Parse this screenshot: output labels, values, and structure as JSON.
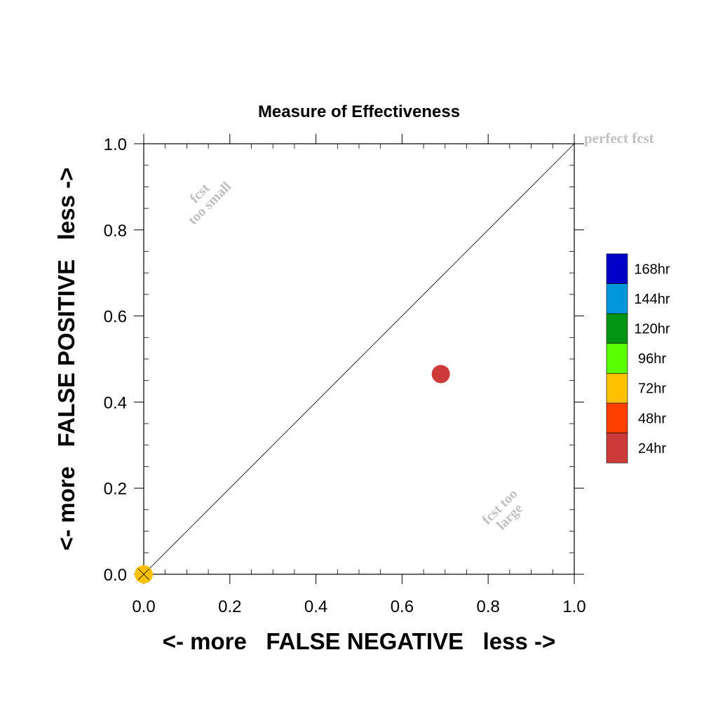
{
  "chart_data": {
    "type": "scatter",
    "title": "Measure of Effectiveness",
    "xlabel": "<- more   FALSE NEGATIVE   less ->",
    "ylabel": "<- more   FALSE POSITIVE   less ->",
    "xlim": [
      0.0,
      1.0
    ],
    "ylim": [
      0.0,
      1.0
    ],
    "xticks": [
      "0.0",
      "0.2",
      "0.4",
      "0.6",
      "0.8",
      "1.0"
    ],
    "yticks": [
      "0.0",
      "0.2",
      "0.4",
      "0.6",
      "0.8",
      "1.0"
    ],
    "tick_values": [
      0.0,
      0.2,
      0.4,
      0.6,
      0.8,
      1.0
    ],
    "grid": false,
    "reference_line": {
      "from": [
        0,
        0
      ],
      "to": [
        1,
        1
      ]
    },
    "annotations": [
      {
        "text": "perfect fcst"
      },
      {
        "text": "fcst\ntoo small"
      },
      {
        "text": "fcst too\nlarge"
      }
    ],
    "series": [
      {
        "name": "24hr",
        "color": "#cc3a3a",
        "points": [
          [
            0.69,
            0.465
          ]
        ]
      },
      {
        "name": "72hr",
        "color": "#ffc000",
        "points": [
          [
            0.0,
            0.0
          ]
        ]
      }
    ],
    "legend": {
      "placement": "right",
      "items": [
        {
          "label": "168hr",
          "color": "#0000c8"
        },
        {
          "label": "144hr",
          "color": "#0098dc"
        },
        {
          "label": "120hr",
          "color": "#009614"
        },
        {
          "label": "96hr",
          "color": "#5aff00"
        },
        {
          "label": "72hr",
          "color": "#ffc000"
        },
        {
          "label": "48hr",
          "color": "#ff4000"
        },
        {
          "label": "24hr",
          "color": "#cc3a3a"
        }
      ]
    }
  }
}
